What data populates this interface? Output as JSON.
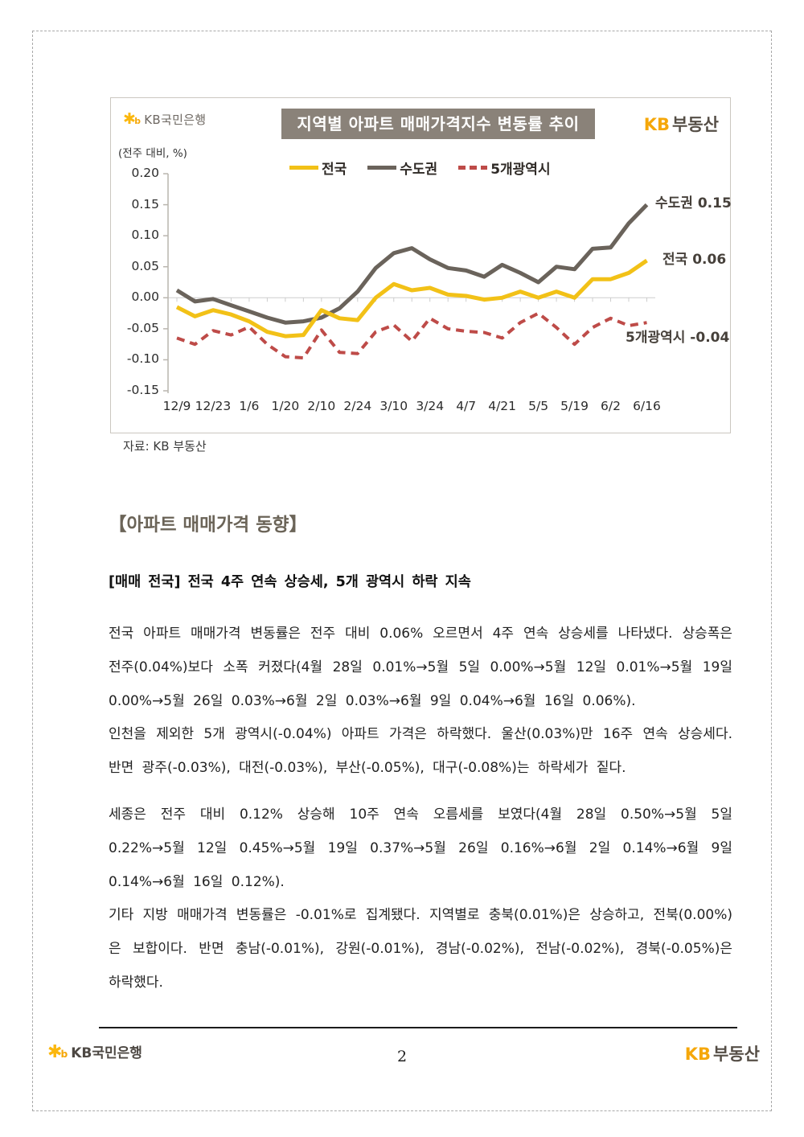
{
  "chart_data": {
    "type": "line",
    "title": "지역별 아파트 매매가격지수 변동률 추이",
    "unit": "(전주 대비, %)",
    "source": "자료: KB 부동산",
    "x": [
      "12/9",
      "12/16",
      "12/23",
      "12/30",
      "1/6",
      "1/13",
      "1/20",
      "2/3",
      "2/10",
      "2/17",
      "2/24",
      "3/3",
      "3/10",
      "3/17",
      "3/24",
      "3/31",
      "4/7",
      "4/14",
      "4/21",
      "4/28",
      "5/5",
      "5/12",
      "5/19",
      "5/26",
      "6/2",
      "6/9",
      "6/16"
    ],
    "x_shown_ticks": [
      "12/9",
      "12/23",
      "1/6",
      "1/20",
      "2/10",
      "2/24",
      "3/10",
      "3/24",
      "4/7",
      "4/21",
      "5/5",
      "5/19",
      "6/2",
      "6/16"
    ],
    "ylim": [
      -0.15,
      0.2
    ],
    "yticks": [
      "0.20",
      "0.15",
      "0.10",
      "0.05",
      "0.00",
      "-0.05",
      "-0.10",
      "-0.15"
    ],
    "legend_position": "top",
    "grid": "zero-line-only",
    "series": [
      {
        "name": "전국",
        "color": "#F2C117",
        "style": "solid",
        "values": [
          -0.015,
          -0.03,
          -0.02,
          -0.027,
          -0.038,
          -0.055,
          -0.062,
          -0.06,
          -0.02,
          -0.033,
          -0.036,
          0.0,
          0.022,
          0.012,
          0.016,
          0.005,
          0.003,
          -0.003,
          0.0,
          0.01,
          0.0,
          0.01,
          0.0,
          0.03,
          0.03,
          0.04,
          0.06
        ]
      },
      {
        "name": "수도권",
        "color": "#6A635B",
        "style": "solid",
        "values": [
          0.012,
          -0.006,
          -0.002,
          -0.012,
          -0.022,
          -0.032,
          -0.04,
          -0.038,
          -0.032,
          -0.017,
          0.01,
          0.048,
          0.072,
          0.08,
          0.062,
          0.048,
          0.044,
          0.034,
          0.053,
          0.04,
          0.025,
          0.05,
          0.046,
          0.079,
          0.081,
          0.12,
          0.15
        ]
      },
      {
        "name": "5개광역시",
        "color": "#BE4B48",
        "style": "dashed",
        "values": [
          -0.065,
          -0.075,
          -0.053,
          -0.06,
          -0.047,
          -0.075,
          -0.095,
          -0.097,
          -0.052,
          -0.088,
          -0.09,
          -0.055,
          -0.044,
          -0.07,
          -0.033,
          -0.05,
          -0.054,
          -0.056,
          -0.065,
          -0.04,
          -0.025,
          -0.048,
          -0.075,
          -0.048,
          -0.033,
          -0.045,
          -0.04
        ]
      }
    ],
    "annotations": [
      {
        "text": "수도권 0.15"
      },
      {
        "text": "전국 0.06"
      },
      {
        "text": "5개광역시 -0.04"
      }
    ]
  },
  "header": {
    "bank_logo": {
      "star": "✱",
      "b": "b",
      "name": "KB국민은행"
    },
    "title": "지역별 아파트 매매가격지수 변동률 추이",
    "estate_logo": {
      "kb": "KB",
      "name": "부동산"
    },
    "unit_label": "(전주 대비, %)",
    "source": "자료: KB 부동산"
  },
  "content": {
    "section_heading": "【아파트 매매가격 동향】",
    "subheading": "[매매 전국] 전국 4주 연속 상승세, 5개 광역시 하락 지속",
    "paragraphs": [
      "전국 아파트 매매가격 변동률은 전주 대비 0.06% 오르면서 4주 연속 상승세를 나타냈다. 상승폭은 전주(0.04%)보다 소폭 커졌다(4월 28일 0.01%→5월 5일 0.00%→5월 12일 0.01%→5월 19일 0.00%→5월 26일 0.03%→6월 2일 0.03%→6월 9일 0.04%→6월 16일 0.06%).",
      "인천을 제외한 5개 광역시(-0.04%) 아파트 가격은 하락했다. 울산(0.03%)만 16주 연속 상승세다. 반면 광주(-0.03%), 대전(-0.03%), 부산(-0.05%), 대구(-0.08%)는 하락세가 짙다.",
      "세종은 전주 대비 0.12% 상승해 10주 연속 오름세를 보였다(4월 28일 0.50%→5월 5일 0.22%→5월 12일 0.45%→5월 19일 0.37%→5월 26일 0.16%→6월 2일 0.14%→6월 9일 0.14%→6월 16일 0.12%).",
      "기타 지방 매매가격 변동률은 -0.01%로 집계됐다. 지역별로 충북(0.01%)은 상승하고, 전북(0.00%)은 보합이다. 반면 충남(-0.01%), 강원(-0.01%), 경남(-0.02%), 전남(-0.02%), 경북(-0.05%)은 하락했다."
    ]
  },
  "footer": {
    "bank_logo": {
      "star": "✱",
      "b": "b",
      "name": "KB국민은행"
    },
    "page_number": "2",
    "estate_logo": {
      "kb": "KB",
      "name": "부동산"
    }
  },
  "colors": {
    "kb_yellow": "#F5A70A",
    "banner_gray": "#8a8279",
    "heading_brown": "#6B6458"
  }
}
